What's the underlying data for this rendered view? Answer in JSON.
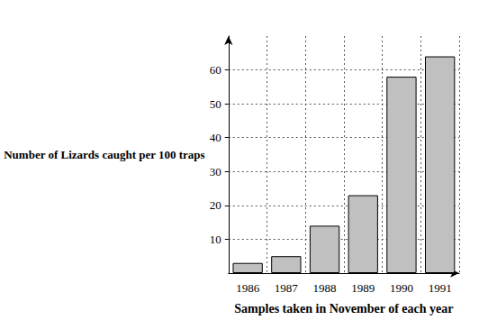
{
  "chart_data": {
    "type": "bar",
    "xlabel": "Samples taken in November of each year",
    "ylabel": "Number of Lizards caught per 100 traps",
    "categories": [
      "1986",
      "1987",
      "1988",
      "1989",
      "1990",
      "1991"
    ],
    "values": [
      3,
      5,
      14,
      23,
      58,
      64
    ],
    "color": "#c0c0c0",
    "ylim": [
      0,
      70
    ],
    "yticks": [
      10,
      20,
      30,
      40,
      50,
      60
    ],
    "grid": true
  }
}
